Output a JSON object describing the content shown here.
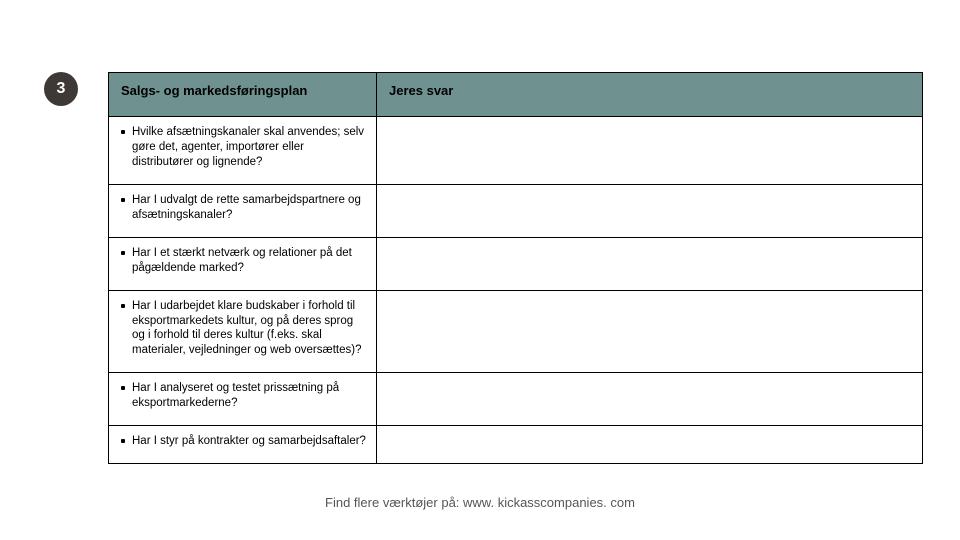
{
  "badge": {
    "number": "3",
    "bg_color": "#3e3936",
    "text_color": "#ffffff"
  },
  "table": {
    "header_bg": "#6f9291",
    "header_text_color": "#000000",
    "border_color": "#000000",
    "columns": {
      "question_header": "Salgs- og markedsføringsplan",
      "answer_header": "Jeres svar"
    },
    "rows": [
      {
        "bullet": "Hvilke afsætningskanaler skal anvendes; selv gøre det, agenter, importører eller distributører og lignende?",
        "answer": ""
      },
      {
        "bullet": "Har I udvalgt de rette samarbejdspartnere og afsætningskanaler?",
        "answer": ""
      },
      {
        "bullet": "Har I et stærkt netværk og relationer på det pågældende marked?",
        "answer": ""
      },
      {
        "bullet": "Har I udarbejdet klare budskaber i forhold til eksportmarkedets kultur, og på deres sprog og i forhold til deres kultur (f.eks. skal materialer, vejledninger og web oversættes)?",
        "answer": ""
      },
      {
        "bullet": "Har I analyseret og testet prissætning på eksportmarkederne?",
        "answer": ""
      },
      {
        "bullet": "Har I styr på kontrakter og samarbejdsaftaler?",
        "answer": ""
      }
    ]
  },
  "footer": {
    "text": "Find flere værktøjer på: www. kickasscompanies. com",
    "color": "#555555"
  }
}
